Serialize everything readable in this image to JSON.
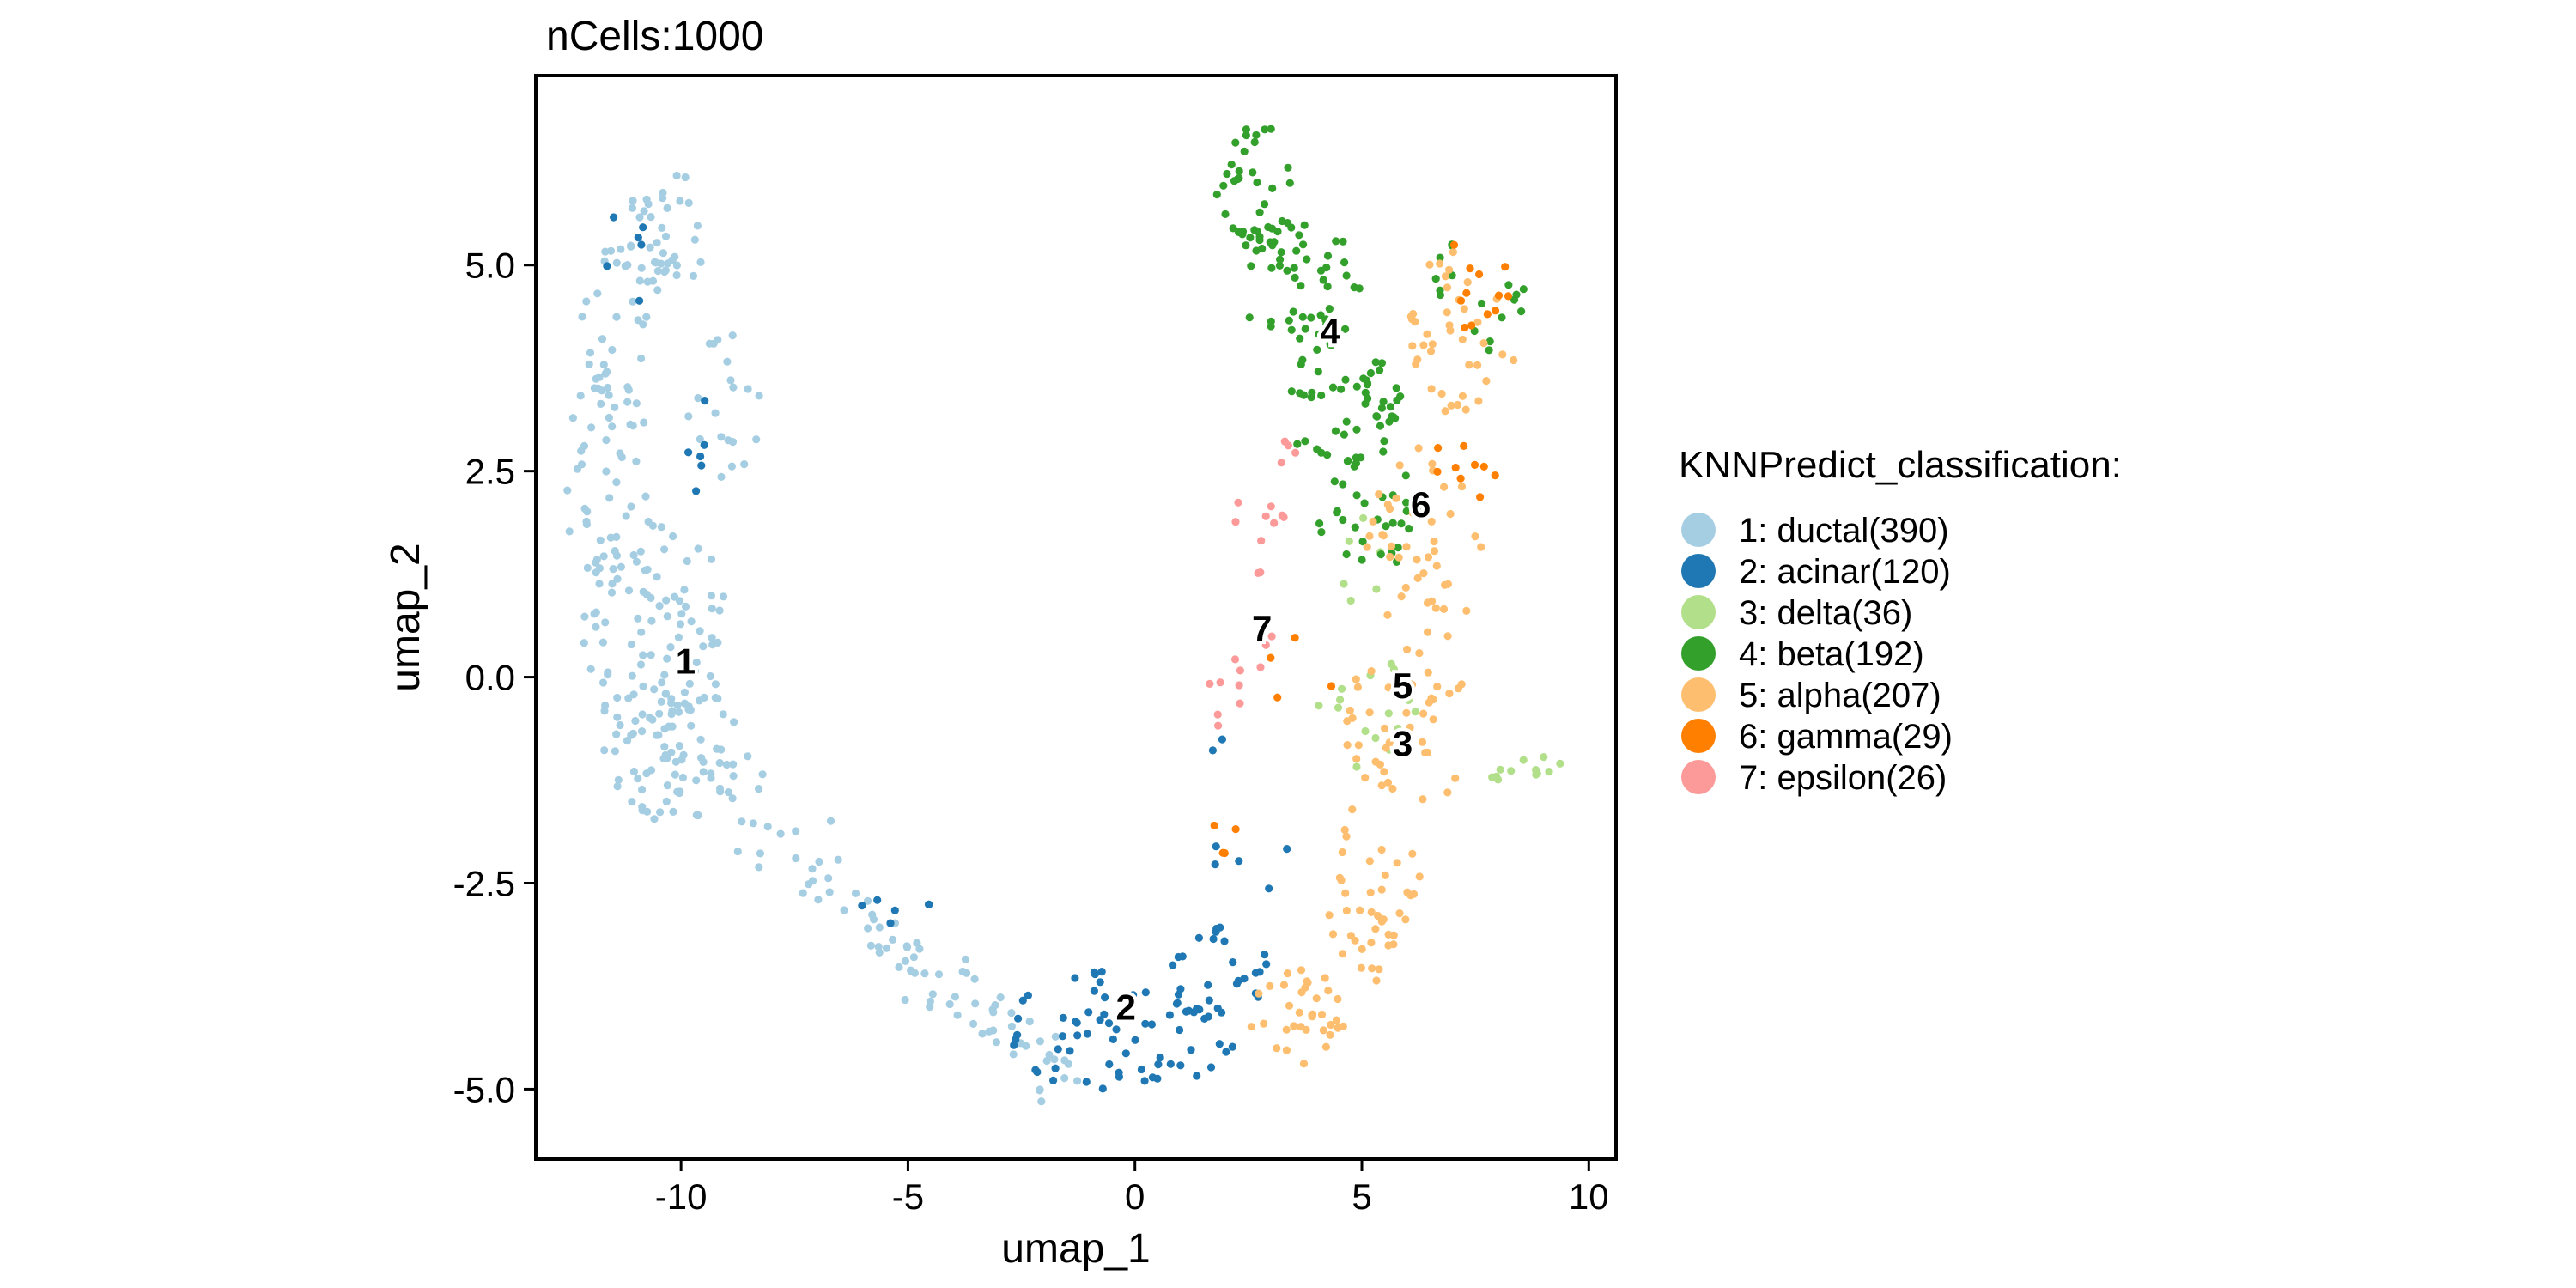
{
  "chart_data": {
    "type": "scatter",
    "title": "nCells:1000",
    "xlabel": "umap_1",
    "ylabel": "umap_2",
    "xlim": [
      -13.2,
      10.6
    ],
    "ylim": [
      -5.85,
      7.3
    ],
    "xticks": [
      -10,
      -5,
      0,
      5,
      10
    ],
    "xtick_labels": [
      "-10",
      "-5",
      "0",
      "5",
      "10"
    ],
    "yticks": [
      -5,
      -2.5,
      0,
      2.5,
      5
    ],
    "ytick_labels": [
      "-5.0",
      "-2.5",
      "0.0",
      "2.5",
      "5.0"
    ],
    "grid": false,
    "legend_position": "right",
    "legend_title": "KNNPredict_classification:",
    "total_cells": 1000,
    "series": [
      {
        "id": "1",
        "name": "ductal",
        "count": 390,
        "legend_label": "1: ductal(390)",
        "color": "#A6CEE3",
        "label_pos": [
          -9.9,
          0.2
        ],
        "regions": [
          {
            "shape": "ellipse",
            "cx": -10.3,
            "cy": 5.4,
            "rx": 0.9,
            "ry": 0.8,
            "n": 40
          },
          {
            "shape": "ellipse",
            "cx": -11.4,
            "cy": 4.3,
            "rx": 0.8,
            "ry": 1.0,
            "n": 30
          },
          {
            "shape": "ellipse",
            "cx": -11.6,
            "cy": 2.4,
            "rx": 1.0,
            "ry": 1.3,
            "n": 45
          },
          {
            "shape": "ellipse",
            "cx": -9.0,
            "cy": 3.3,
            "rx": 0.9,
            "ry": 0.9,
            "n": 20
          },
          {
            "shape": "ellipse",
            "cx": -10.6,
            "cy": 0.6,
            "rx": 1.6,
            "ry": 1.4,
            "n": 90
          },
          {
            "shape": "ellipse",
            "cx": -10.1,
            "cy": -0.9,
            "rx": 1.6,
            "ry": 0.9,
            "n": 80
          },
          {
            "shape": "line",
            "x1": -8.5,
            "y1": -1.6,
            "x2": -4.6,
            "y2": -3.6,
            "spread": 0.35,
            "n": 45
          },
          {
            "shape": "line",
            "x1": -4.6,
            "y1": -3.6,
            "x2": -1.4,
            "y2": -4.9,
            "spread": 0.4,
            "n": 40
          }
        ]
      },
      {
        "id": "2",
        "name": "acinar",
        "count": 120,
        "legend_label": "2: acinar(120)",
        "color": "#1F78B4",
        "label_pos": [
          -0.2,
          -4.0
        ],
        "regions": [
          {
            "shape": "ellipse",
            "cx": -0.3,
            "cy": -4.3,
            "rx": 2.6,
            "ry": 0.75,
            "n": 70
          },
          {
            "shape": "ellipse",
            "cx": 1.8,
            "cy": -3.6,
            "rx": 1.2,
            "ry": 0.6,
            "n": 25
          },
          {
            "shape": "ellipse",
            "cx": -11.0,
            "cy": 5.2,
            "rx": 0.7,
            "ry": 0.7,
            "n": 6
          },
          {
            "shape": "ellipse",
            "cx": -9.6,
            "cy": 2.8,
            "rx": 0.6,
            "ry": 0.6,
            "n": 6
          },
          {
            "shape": "ellipse",
            "cx": -5.5,
            "cy": -2.8,
            "rx": 1.2,
            "ry": 0.5,
            "n": 6
          },
          {
            "shape": "ellipse",
            "cx": 2.4,
            "cy": -2.2,
            "rx": 1.0,
            "ry": 0.6,
            "n": 5
          },
          {
            "shape": "ellipse",
            "cx": 1.8,
            "cy": -1.0,
            "rx": 0.4,
            "ry": 0.4,
            "n": 2
          }
        ]
      },
      {
        "id": "3",
        "name": "delta",
        "count": 36,
        "legend_label": "3: delta(36)",
        "color": "#B2DF8A",
        "label_pos": [
          5.9,
          -0.8
        ],
        "regions": [
          {
            "shape": "ellipse",
            "cx": 5.0,
            "cy": -0.4,
            "rx": 1.2,
            "ry": 0.7,
            "n": 18
          },
          {
            "shape": "line",
            "x1": 7.7,
            "y1": -1.1,
            "x2": 9.5,
            "y2": -1.1,
            "spread": 0.15,
            "n": 12
          },
          {
            "shape": "ellipse",
            "cx": 5.0,
            "cy": 1.4,
            "rx": 0.5,
            "ry": 0.6,
            "n": 6
          }
        ]
      },
      {
        "id": "4",
        "name": "beta",
        "count": 192,
        "legend_label": "4: beta(192)",
        "color": "#33A02C",
        "label_pos": [
          4.3,
          4.2
        ],
        "regions": [
          {
            "shape": "ellipse",
            "cx": 2.7,
            "cy": 5.9,
            "rx": 0.9,
            "ry": 0.8,
            "n": 40
          },
          {
            "shape": "ellipse",
            "cx": 3.7,
            "cy": 4.7,
            "rx": 1.3,
            "ry": 0.9,
            "n": 50
          },
          {
            "shape": "ellipse",
            "cx": 4.6,
            "cy": 3.3,
            "rx": 1.3,
            "ry": 0.8,
            "n": 50
          },
          {
            "shape": "ellipse",
            "cx": 5.2,
            "cy": 2.0,
            "rx": 1.2,
            "ry": 0.7,
            "n": 35
          },
          {
            "shape": "ellipse",
            "cx": 8.0,
            "cy": 4.5,
            "rx": 0.6,
            "ry": 0.8,
            "n": 10
          },
          {
            "shape": "ellipse",
            "cx": 6.8,
            "cy": 5.0,
            "rx": 0.5,
            "ry": 0.4,
            "n": 7
          }
        ]
      },
      {
        "id": "5",
        "name": "alpha",
        "count": 207,
        "legend_label": "5: alpha(207)",
        "color": "#FDBF6F",
        "label_pos": [
          5.9,
          -0.1
        ],
        "regions": [
          {
            "shape": "ellipse",
            "cx": 7.1,
            "cy": 4.2,
            "rx": 1.4,
            "ry": 1.0,
            "n": 40
          },
          {
            "shape": "ellipse",
            "cx": 6.4,
            "cy": 1.6,
            "rx": 1.3,
            "ry": 1.2,
            "n": 45
          },
          {
            "shape": "ellipse",
            "cx": 6.0,
            "cy": -0.6,
            "rx": 1.5,
            "ry": 1.0,
            "n": 45
          },
          {
            "shape": "ellipse",
            "cx": 5.2,
            "cy": -2.6,
            "rx": 1.1,
            "ry": 1.1,
            "n": 42
          },
          {
            "shape": "ellipse",
            "cx": 3.6,
            "cy": -4.1,
            "rx": 1.1,
            "ry": 0.6,
            "n": 35
          }
        ]
      },
      {
        "id": "6",
        "name": "gamma",
        "count": 29,
        "legend_label": "6: gamma(29)",
        "color": "#FF7F00",
        "label_pos": [
          6.3,
          2.1
        ],
        "regions": [
          {
            "shape": "ellipse",
            "cx": 7.5,
            "cy": 4.8,
            "rx": 0.8,
            "ry": 0.6,
            "n": 12
          },
          {
            "shape": "ellipse",
            "cx": 7.4,
            "cy": 2.6,
            "rx": 0.8,
            "ry": 0.5,
            "n": 9
          },
          {
            "shape": "ellipse",
            "cx": 3.8,
            "cy": 0.1,
            "rx": 1.2,
            "ry": 0.5,
            "n": 4
          },
          {
            "shape": "ellipse",
            "cx": 2.4,
            "cy": -2.1,
            "rx": 0.8,
            "ry": 0.6,
            "n": 4
          }
        ]
      },
      {
        "id": "7",
        "name": "epsilon",
        "count": 26,
        "legend_label": "7: epsilon(26)",
        "color": "#FB9A99",
        "label_pos": [
          2.8,
          0.6
        ],
        "regions": [
          {
            "shape": "ellipse",
            "cx": 2.7,
            "cy": 1.8,
            "rx": 0.6,
            "ry": 0.6,
            "n": 10
          },
          {
            "shape": "ellipse",
            "cx": 3.2,
            "cy": 2.7,
            "rx": 0.4,
            "ry": 0.4,
            "n": 4
          },
          {
            "shape": "ellipse",
            "cx": 2.0,
            "cy": -0.2,
            "rx": 0.4,
            "ry": 0.5,
            "n": 8
          },
          {
            "shape": "ellipse",
            "cx": 2.8,
            "cy": 0.4,
            "rx": 0.3,
            "ry": 0.3,
            "n": 4
          }
        ]
      }
    ]
  }
}
